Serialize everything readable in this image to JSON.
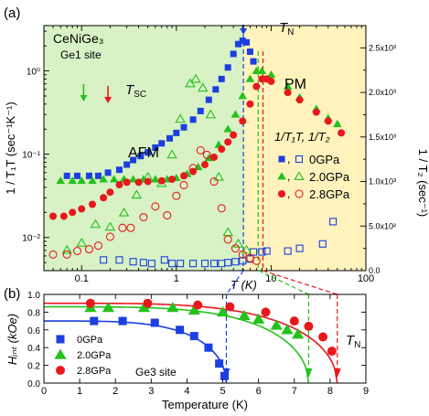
{
  "colors": {
    "s0": "#1b3fe0",
    "s2": "#22c21a",
    "s28": "#e8181c",
    "afm_bg": "#d8f2c6",
    "pm_bg": "#fff2bc",
    "wipe_bg": "#fbf9f0"
  },
  "chart_data": [
    {
      "panel_label": "(a)",
      "type": "scatter",
      "x_axis": {
        "label": "T",
        "unit": "(K)",
        "scale": "log",
        "range": [
          0.04,
          100
        ],
        "tick_labels": [
          "0.1",
          "1",
          "10",
          "100"
        ]
      },
      "y_axis_left": {
        "label": "1 / T₁T (sec⁻¹K⁻¹)",
        "scale": "log",
        "range": [
          0.004,
          3.5
        ],
        "tick_labels": [
          "10⁰",
          "10⁻¹",
          "10⁻²"
        ]
      },
      "y_axis_right": {
        "label": "1 / T₂ (sec⁻¹)",
        "scale": "linear",
        "range": [
          0,
          2750
        ],
        "tick_labels": [
          "0.0",
          "5.0x10²",
          "1.0x10³",
          "1.5x10³",
          "2.0x10³",
          "2.5x10³"
        ]
      },
      "texts": {
        "compound": "CeNiGe₃",
        "site": "Ge1 site",
        "tsc": "T",
        "tsc_sub": "SC",
        "tn": "T",
        "tn_sub": "N",
        "afm": "AFM",
        "pm": "PM",
        "legend_title": "1/T₁T, 1/T₂",
        "x_label": "T (K)"
      },
      "regions": {
        "afm_end_K": 5.1,
        "pm_start_K": 5.1
      },
      "markers": {
        "tsc_green_arrow_K": 0.105,
        "tsc_red_arrow_K": 0.19,
        "tn_blue_dashed_K": 5.1,
        "tn_green_dashed_K": 7.3,
        "tn_red_dashed_K": 8.2
      },
      "series": [
        {
          "name": "0GPa",
          "color_key": "s0",
          "marker": "square",
          "invT1T": [
            [
              0.07,
              0.055
            ],
            [
              0.09,
              0.055
            ],
            [
              0.12,
              0.055
            ],
            [
              0.15,
              0.055
            ],
            [
              0.19,
              0.06
            ],
            [
              0.25,
              0.065
            ],
            [
              0.3,
              0.075
            ],
            [
              0.35,
              0.085
            ],
            [
              0.42,
              0.095
            ],
            [
              0.5,
              0.105
            ],
            [
              0.6,
              0.12
            ],
            [
              0.7,
              0.135
            ],
            [
              0.85,
              0.155
            ],
            [
              1.0,
              0.18
            ],
            [
              1.2,
              0.21
            ],
            [
              1.5,
              0.26
            ],
            [
              1.8,
              0.33
            ],
            [
              2.2,
              0.45
            ],
            [
              2.6,
              0.6
            ],
            [
              3.0,
              0.8
            ],
            [
              3.5,
              1.1
            ],
            [
              4.0,
              1.6
            ],
            [
              4.5,
              2.1
            ],
            [
              5.0,
              2.3
            ],
            [
              5.5,
              2.2
            ],
            [
              6.0,
              1.7
            ],
            [
              6.5,
              1.3
            ]
          ],
          "invT2": [
            [
              0.17,
              120
            ],
            [
              0.25,
              120
            ],
            [
              0.35,
              100
            ],
            [
              0.45,
              90
            ],
            [
              0.55,
              80
            ],
            [
              0.75,
              120
            ],
            [
              0.9,
              80
            ],
            [
              1.1,
              80
            ],
            [
              1.5,
              80
            ],
            [
              2.0,
              80
            ],
            [
              2.5,
              80
            ],
            [
              3.0,
              80
            ],
            [
              3.5,
              90
            ],
            [
              4.2,
              100
            ],
            [
              5.0,
              110
            ],
            [
              6.0,
              130
            ],
            [
              6.5,
              210
            ],
            [
              8.0,
              210
            ],
            [
              9.0,
              220
            ],
            [
              15.0,
              220
            ],
            [
              20.0,
              250
            ],
            [
              35.0,
              300
            ],
            [
              45.0,
              550
            ]
          ]
        },
        {
          "name": "2.0GPa",
          "color_key": "s2",
          "marker": "triangle",
          "invT1T": [
            [
              0.06,
              0.048
            ],
            [
              0.08,
              0.048
            ],
            [
              0.1,
              0.048
            ],
            [
              0.13,
              0.048
            ],
            [
              0.17,
              0.05
            ],
            [
              0.22,
              0.05
            ],
            [
              0.28,
              0.05
            ],
            [
              0.35,
              0.05
            ],
            [
              0.45,
              0.05
            ],
            [
              0.6,
              0.05
            ],
            [
              0.8,
              0.05
            ],
            [
              1.0,
              0.052
            ],
            [
              1.3,
              0.058
            ],
            [
              1.7,
              0.07
            ],
            [
              2.2,
              0.09
            ],
            [
              2.8,
              0.13
            ],
            [
              3.5,
              0.2
            ],
            [
              4.2,
              0.3
            ],
            [
              5.0,
              0.5
            ],
            [
              6.0,
              0.8
            ],
            [
              7.0,
              1.0
            ],
            [
              8.0,
              1.0
            ],
            [
              10.0,
              0.9
            ],
            [
              15.0,
              0.65
            ],
            [
              20.0,
              0.48
            ],
            [
              30.0,
              0.35
            ],
            [
              40.0,
              0.27
            ],
            [
              50.0,
              0.23
            ]
          ],
          "invT2": [
            [
              0.07,
              230
            ],
            [
              0.1,
              310
            ],
            [
              0.14,
              520
            ],
            [
              0.2,
              490
            ],
            [
              0.28,
              650
            ],
            [
              0.38,
              850
            ],
            [
              0.5,
              1050
            ],
            [
              0.7,
              980
            ],
            [
              0.9,
              1300
            ],
            [
              1.1,
              1700
            ],
            [
              1.4,
              2100
            ],
            [
              1.6,
              2150
            ],
            [
              1.9,
              2050
            ],
            [
              2.3,
              1750
            ],
            [
              2.8,
              1050
            ],
            [
              3.5,
              430
            ],
            [
              4.5,
              300
            ],
            [
              5.5,
              230
            ]
          ]
        },
        {
          "name": "2.8GPa",
          "color_key": "s28",
          "marker": "circle",
          "invT1T": [
            [
              0.05,
              0.018
            ],
            [
              0.065,
              0.018
            ],
            [
              0.08,
              0.02
            ],
            [
              0.1,
              0.022
            ],
            [
              0.13,
              0.025
            ],
            [
              0.17,
              0.03
            ],
            [
              0.2,
              0.035
            ],
            [
              0.25,
              0.043
            ],
            [
              0.3,
              0.046
            ],
            [
              0.4,
              0.046
            ],
            [
              0.5,
              0.047
            ],
            [
              0.7,
              0.048
            ],
            [
              0.9,
              0.05
            ],
            [
              1.2,
              0.055
            ],
            [
              1.5,
              0.062
            ],
            [
              2.0,
              0.075
            ],
            [
              2.5,
              0.092
            ],
            [
              3.0,
              0.115
            ],
            [
              3.5,
              0.14
            ],
            [
              4.0,
              0.17
            ],
            [
              5.0,
              0.25
            ],
            [
              6.0,
              0.4
            ],
            [
              7.0,
              0.65
            ],
            [
              8.0,
              0.8
            ],
            [
              9.0,
              0.8
            ],
            [
              10.0,
              0.75
            ],
            [
              15.0,
              0.55
            ],
            [
              20.0,
              0.45
            ],
            [
              30.0,
              0.32
            ],
            [
              40.0,
              0.25
            ],
            [
              55.0,
              0.18
            ]
          ],
          "invT2": [
            [
              0.05,
              180
            ],
            [
              0.07,
              180
            ],
            [
              0.09,
              220
            ],
            [
              0.12,
              240
            ],
            [
              0.15,
              280
            ],
            [
              0.2,
              380
            ],
            [
              0.27,
              480
            ],
            [
              0.33,
              480
            ],
            [
              0.45,
              600
            ],
            [
              0.6,
              720
            ],
            [
              0.8,
              620
            ],
            [
              1.0,
              840
            ],
            [
              1.2,
              960
            ],
            [
              1.5,
              1150
            ],
            [
              1.8,
              1350
            ],
            [
              2.1,
              1300
            ],
            [
              2.5,
              1000
            ],
            [
              3.0,
              700
            ],
            [
              3.5,
              350
            ],
            [
              4.2,
              250
            ],
            [
              5.0,
              180
            ],
            [
              6.0,
              140
            ],
            [
              7.0,
              110
            ]
          ]
        }
      ]
    },
    {
      "panel_label": "(b)",
      "type": "scatter",
      "x_axis": {
        "label": "Temperature (K)",
        "scale": "linear",
        "range": [
          0,
          9
        ],
        "tick_labels": [
          "0",
          "1",
          "2",
          "3",
          "4",
          "5",
          "6",
          "7",
          "8",
          "9"
        ]
      },
      "y_axis": {
        "label": "Hᵢₙₜ (kOe)",
        "scale": "linear",
        "range": [
          0,
          1.0
        ],
        "tick_labels": [
          "0.0",
          "0.2",
          "0.4",
          "0.6",
          "0.8",
          "1.0"
        ]
      },
      "texts": {
        "site": "Ge3 site",
        "tn": "T",
        "tn_sub": "N"
      },
      "series": [
        {
          "name": "0GPa",
          "color_key": "s0",
          "marker": "square",
          "tn_K": 5.1,
          "h0": 0.7,
          "points": [
            [
              1.4,
              0.7
            ],
            [
              2.2,
              0.7
            ],
            [
              3.1,
              0.68
            ],
            [
              3.8,
              0.6
            ],
            [
              4.2,
              0.53
            ],
            [
              4.6,
              0.4
            ],
            [
              4.9,
              0.22
            ],
            [
              5.05,
              0.08
            ]
          ]
        },
        {
          "name": "2.0GPa",
          "color_key": "s2",
          "marker": "triangle",
          "tn_K": 7.4,
          "h0": 0.86,
          "points": [
            [
              1.3,
              0.85
            ],
            [
              1.8,
              0.85
            ],
            [
              2.8,
              0.85
            ],
            [
              3.6,
              0.85
            ],
            [
              4.2,
              0.82
            ],
            [
              5.0,
              0.8
            ],
            [
              5.6,
              0.76
            ],
            [
              6.0,
              0.72
            ],
            [
              6.5,
              0.65
            ],
            [
              6.8,
              0.6
            ],
            [
              7.1,
              0.55
            ]
          ]
        },
        {
          "name": "2.8GPa",
          "color_key": "s28",
          "marker": "circle",
          "tn_K": 8.2,
          "h0": 0.9,
          "points": [
            [
              1.3,
              0.9
            ],
            [
              2.9,
              0.9
            ],
            [
              4.3,
              0.88
            ],
            [
              5.2,
              0.86
            ],
            [
              6.2,
              0.8
            ],
            [
              7.0,
              0.7
            ],
            [
              7.4,
              0.64
            ],
            [
              7.8,
              0.52
            ],
            [
              8.05,
              0.36
            ]
          ]
        }
      ]
    }
  ]
}
